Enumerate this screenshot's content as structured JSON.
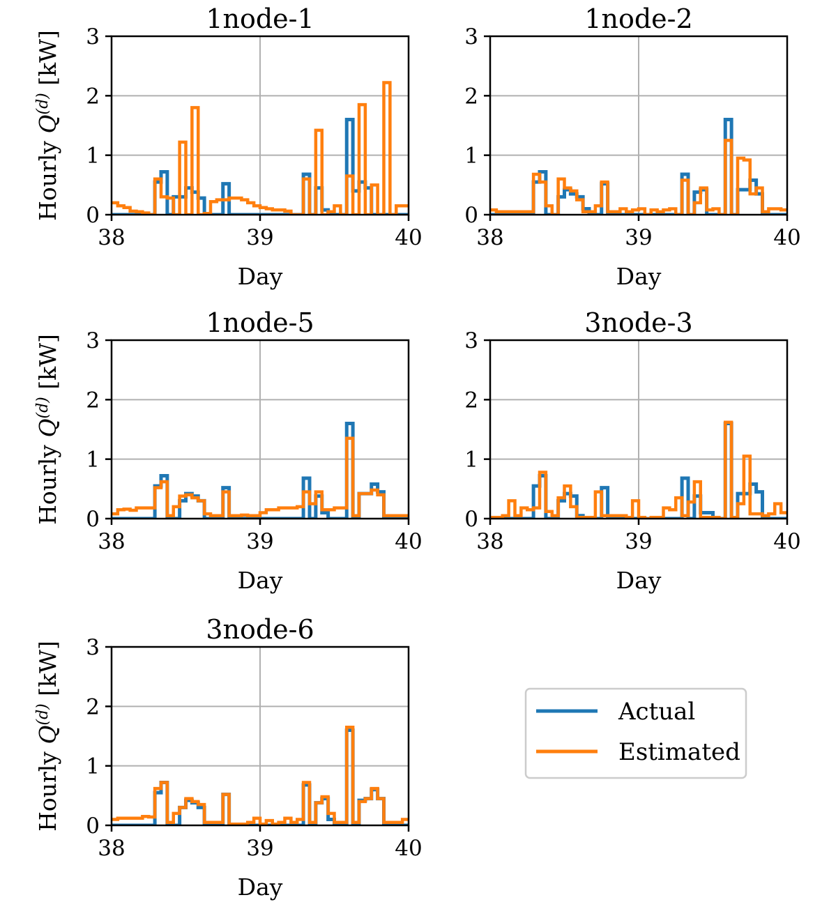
{
  "chart_data": [
    {
      "type": "line",
      "title": "1node-1",
      "xlabel": "Day",
      "ylabel_prefix": "Hourly ",
      "ylabel_var": "Q",
      "ylabel_sup": "(d)",
      "ylabel_unit": " [kW]",
      "xlim": [
        38,
        40
      ],
      "ylim": [
        0,
        3
      ],
      "xticks": [
        "38",
        "39",
        "40"
      ],
      "yticks": [
        "0",
        "1",
        "2",
        "3"
      ],
      "grid": true,
      "x_start": 38,
      "step_hours": 1,
      "series": [
        {
          "name": "Actual",
          "color": "#1f77b4",
          "values": [
            0,
            0,
            0,
            0,
            0,
            0,
            0,
            0.55,
            0.72,
            0,
            0.3,
            0.3,
            0.45,
            0.38,
            0.28,
            0,
            0,
            0,
            0.52,
            0,
            0,
            0,
            0,
            0,
            0,
            0,
            0,
            0,
            0,
            0,
            0,
            0.68,
            0,
            0.45,
            0.08,
            0,
            0,
            0,
            1.6,
            0.4,
            0.55,
            0.45,
            0,
            0,
            0,
            0,
            0,
            0
          ]
        },
        {
          "name": "Estimated",
          "color": "#ff7f0e",
          "values": [
            0.2,
            0.15,
            0.12,
            0.06,
            0.05,
            0.03,
            0,
            0.6,
            0.3,
            0.28,
            0,
            1.22,
            0,
            1.8,
            0,
            0.02,
            0.22,
            0.25,
            0.25,
            0.28,
            0.28,
            0.25,
            0.2,
            0.15,
            0.12,
            0.1,
            0.08,
            0.08,
            0.06,
            0,
            0,
            0.6,
            0,
            1.42,
            0,
            0.05,
            0.15,
            0,
            0.65,
            0,
            1.85,
            0,
            0.5,
            0,
            2.22,
            0,
            0.15,
            0.15
          ]
        }
      ]
    },
    {
      "type": "line",
      "title": "1node-2",
      "xlabel": "Day",
      "ylabel_prefix": "",
      "ylabel_var": "",
      "ylabel_sup": "",
      "ylabel_unit": "",
      "xlim": [
        38,
        40
      ],
      "ylim": [
        0,
        3
      ],
      "xticks": [
        "38",
        "39",
        "40"
      ],
      "yticks": [
        "0",
        "1",
        "2",
        "3"
      ],
      "grid": true,
      "x_start": 38,
      "step_hours": 1,
      "series": [
        {
          "name": "Actual",
          "color": "#1f77b4",
          "values": [
            0,
            0,
            0,
            0,
            0,
            0,
            0,
            0.55,
            0.72,
            0,
            0,
            0.3,
            0.42,
            0.35,
            0.3,
            0.1,
            0,
            0,
            0.52,
            0,
            0,
            0,
            0,
            0,
            0,
            0,
            0,
            0,
            0,
            0,
            0,
            0.68,
            0,
            0.38,
            0.42,
            0,
            0,
            0,
            1.6,
            0,
            0.42,
            0.42,
            0.58,
            0.35,
            0,
            0,
            0,
            0
          ]
        },
        {
          "name": "Estimated",
          "color": "#ff7f0e",
          "values": [
            0.08,
            0.05,
            0.05,
            0.05,
            0.05,
            0.05,
            0.05,
            0.68,
            0.55,
            0.15,
            0,
            0.6,
            0.45,
            0.4,
            0.25,
            0.05,
            0.05,
            0.15,
            0.55,
            0.05,
            0.05,
            0.1,
            0.05,
            0.08,
            0.1,
            0,
            0.08,
            0.05,
            0.08,
            0.1,
            0,
            0.58,
            0,
            0.2,
            0.45,
            0.08,
            0.1,
            0,
            1.25,
            0,
            0.95,
            0.92,
            0.35,
            0.45,
            0.05,
            0.1,
            0.1,
            0.08
          ]
        }
      ]
    },
    {
      "type": "line",
      "title": "1node-5",
      "xlabel": "Day",
      "ylabel_prefix": "Hourly ",
      "ylabel_var": "Q",
      "ylabel_sup": "(d)",
      "ylabel_unit": " [kW]",
      "xlim": [
        38,
        40
      ],
      "ylim": [
        0,
        3
      ],
      "xticks": [
        "38",
        "39",
        "40"
      ],
      "yticks": [
        "0",
        "1",
        "2",
        "3"
      ],
      "grid": true,
      "x_start": 38,
      "step_hours": 1,
      "series": [
        {
          "name": "Actual",
          "color": "#1f77b4",
          "values": [
            0,
            0,
            0,
            0,
            0,
            0,
            0,
            0.55,
            0.72,
            0,
            0,
            0.3,
            0.42,
            0.38,
            0.3,
            0,
            0,
            0,
            0.52,
            0,
            0,
            0,
            0,
            0,
            0,
            0,
            0,
            0,
            0,
            0,
            0,
            0.68,
            0,
            0.38,
            0.1,
            0,
            0,
            0,
            1.6,
            0,
            0.42,
            0.42,
            0.58,
            0.45,
            0,
            0,
            0,
            0
          ]
        },
        {
          "name": "Estimated",
          "color": "#ff7f0e",
          "values": [
            0.08,
            0.15,
            0.16,
            0.14,
            0.18,
            0.18,
            0.18,
            0.52,
            0.62,
            0.05,
            0.2,
            0.38,
            0.4,
            0.35,
            0.3,
            0.08,
            0.05,
            0.05,
            0.45,
            0.05,
            0.05,
            0.06,
            0.05,
            0.05,
            0.1,
            0.15,
            0.15,
            0.18,
            0.18,
            0.18,
            0.2,
            0.45,
            0.25,
            0.45,
            0.15,
            0.15,
            0.18,
            0.18,
            1.35,
            0.05,
            0.42,
            0.42,
            0.48,
            0.4,
            0.05,
            0.05,
            0.05,
            0.05
          ]
        }
      ]
    },
    {
      "type": "line",
      "title": "3node-3",
      "xlabel": "Day",
      "ylabel_prefix": "",
      "ylabel_var": "",
      "ylabel_sup": "",
      "ylabel_unit": "",
      "xlim": [
        38,
        40
      ],
      "ylim": [
        0,
        3
      ],
      "xticks": [
        "38",
        "39",
        "40"
      ],
      "yticks": [
        "0",
        "1",
        "2",
        "3"
      ],
      "grid": true,
      "x_start": 38,
      "step_hours": 1,
      "series": [
        {
          "name": "Actual",
          "color": "#1f77b4",
          "values": [
            0,
            0,
            0,
            0,
            0,
            0,
            0,
            0.55,
            0.72,
            0,
            0,
            0.3,
            0.42,
            0.38,
            0.05,
            0,
            0,
            0,
            0.52,
            0,
            0,
            0,
            0,
            0,
            0,
            0,
            0,
            0,
            0,
            0,
            0,
            0.68,
            0,
            0.38,
            0.1,
            0.1,
            0,
            0,
            1.6,
            0,
            0.42,
            0.42,
            0.58,
            0.45,
            0,
            0,
            0,
            0
          ]
        },
        {
          "name": "Estimated",
          "color": "#ff7f0e",
          "values": [
            0.02,
            0.02,
            0.05,
            0.3,
            0.05,
            0.18,
            0.15,
            0.18,
            0.78,
            0.12,
            0.05,
            0.35,
            0.55,
            0.2,
            0.02,
            0.02,
            0.02,
            0.45,
            0.05,
            0.05,
            0.05,
            0.05,
            0.02,
            0.3,
            0.02,
            0,
            0.02,
            0.02,
            0.18,
            0.15,
            0.35,
            0.05,
            0.28,
            0.62,
            0.02,
            0.02,
            0.02,
            0,
            1.62,
            0.02,
            0.25,
            1.05,
            0.08,
            0.08,
            0.05,
            0.08,
            0.25,
            0.1
          ]
        }
      ]
    },
    {
      "type": "line",
      "title": "3node-6",
      "xlabel": "Day",
      "ylabel_prefix": "Hourly ",
      "ylabel_var": "Q",
      "ylabel_sup": "(d)",
      "ylabel_unit": " [kW]",
      "xlim": [
        38,
        40
      ],
      "ylim": [
        0,
        3
      ],
      "xticks": [
        "38",
        "39",
        "40"
      ],
      "yticks": [
        "0",
        "1",
        "2",
        "3"
      ],
      "grid": true,
      "x_start": 38,
      "step_hours": 1,
      "series": [
        {
          "name": "Actual",
          "color": "#1f77b4",
          "values": [
            0,
            0,
            0,
            0,
            0,
            0,
            0,
            0.55,
            0.72,
            0,
            0,
            0.3,
            0.42,
            0.38,
            0.3,
            0,
            0,
            0,
            0.52,
            0,
            0,
            0,
            0,
            0,
            0,
            0,
            0,
            0,
            0,
            0,
            0,
            0.68,
            0,
            0.38,
            0.45,
            0.1,
            0,
            0,
            1.6,
            0,
            0.42,
            0.45,
            0.6,
            0.45,
            0,
            0,
            0,
            0
          ]
        },
        {
          "name": "Estimated",
          "color": "#ff7f0e",
          "values": [
            0.1,
            0.12,
            0.12,
            0.12,
            0.12,
            0.15,
            0.14,
            0.62,
            0.72,
            0.05,
            0.2,
            0.3,
            0.45,
            0.4,
            0.35,
            0.05,
            0.05,
            0.05,
            0.52,
            0.02,
            0.02,
            0.02,
            0.05,
            0.12,
            0.02,
            0.08,
            0.02,
            0.05,
            0.12,
            0.05,
            0.1,
            0.72,
            0.05,
            0.38,
            0.48,
            0.2,
            0.05,
            0.05,
            1.65,
            0.05,
            0.4,
            0.45,
            0.62,
            0.45,
            0.05,
            0.05,
            0.05,
            0.1
          ]
        }
      ]
    }
  ],
  "legend": {
    "placement": "lower-right",
    "entries": [
      {
        "label": "Actual",
        "color": "#1f77b4"
      },
      {
        "label": "Estimated",
        "color": "#ff7f0e"
      }
    ]
  }
}
